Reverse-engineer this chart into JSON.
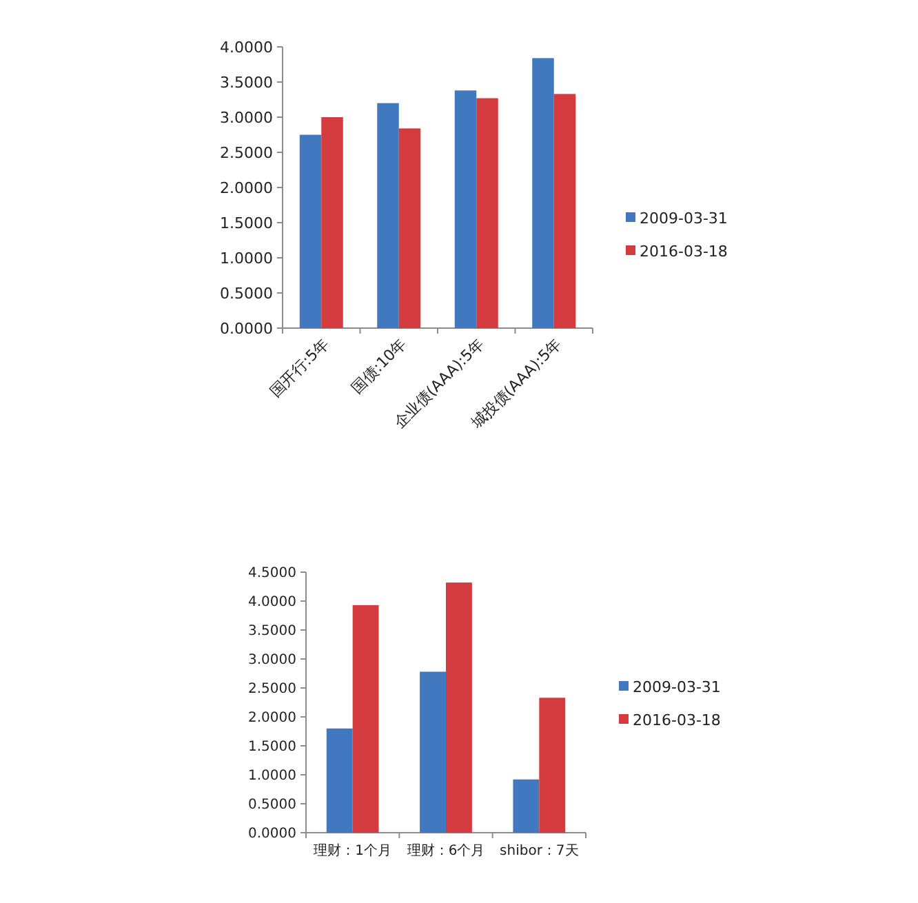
{
  "chart_data": [
    {
      "type": "bar",
      "categories": [
        "国开行:5年",
        "国债:10年",
        "企业债(AAA):5年",
        "城投债(AAA):5年"
      ],
      "series": [
        {
          "name": "2009-03-31",
          "color": "#4178c0",
          "values": [
            2.75,
            3.2,
            3.38,
            3.84
          ]
        },
        {
          "name": "2016-03-18",
          "color": "#d33b3f",
          "values": [
            3.0,
            2.84,
            3.27,
            3.33
          ]
        }
      ],
      "ylim": [
        0,
        4
      ],
      "yticks": [
        {
          "value": 0,
          "label": "0.0000"
        },
        {
          "value": 0.5,
          "label": "0.5000"
        },
        {
          "value": 1,
          "label": "1.0000"
        },
        {
          "value": 1.5,
          "label": "1.5000"
        },
        {
          "value": 2,
          "label": "2.0000"
        },
        {
          "value": 2.5,
          "label": "2.5000"
        },
        {
          "value": 3,
          "label": "3.0000"
        },
        {
          "value": 3.5,
          "label": "3.5000"
        },
        {
          "value": 4,
          "label": "4.0000"
        }
      ],
      "legend": "right"
    },
    {
      "type": "bar",
      "categories": [
        "理财：1个月",
        "理财：6个月",
        "shibor：7天"
      ],
      "series": [
        {
          "name": "2009-03-31",
          "color": "#4178c0",
          "values": [
            1.8,
            2.78,
            0.92
          ]
        },
        {
          "name": "2016-03-18",
          "color": "#d33b3f",
          "values": [
            3.93,
            4.32,
            2.33
          ]
        }
      ],
      "ylim": [
        0,
        4.5
      ],
      "yticks": [
        {
          "value": 0,
          "label": "0.0000"
        },
        {
          "value": 0.5,
          "label": "0.5000"
        },
        {
          "value": 1,
          "label": "1.0000"
        },
        {
          "value": 1.5,
          "label": "1.5000"
        },
        {
          "value": 2,
          "label": "2.0000"
        },
        {
          "value": 2.5,
          "label": "2.5000"
        },
        {
          "value": 3,
          "label": "3.0000"
        },
        {
          "value": 3.5,
          "label": "3.5000"
        },
        {
          "value": 4,
          "label": "4.0000"
        },
        {
          "value": 4.5,
          "label": "4.5000"
        }
      ],
      "legend": "right"
    }
  ]
}
